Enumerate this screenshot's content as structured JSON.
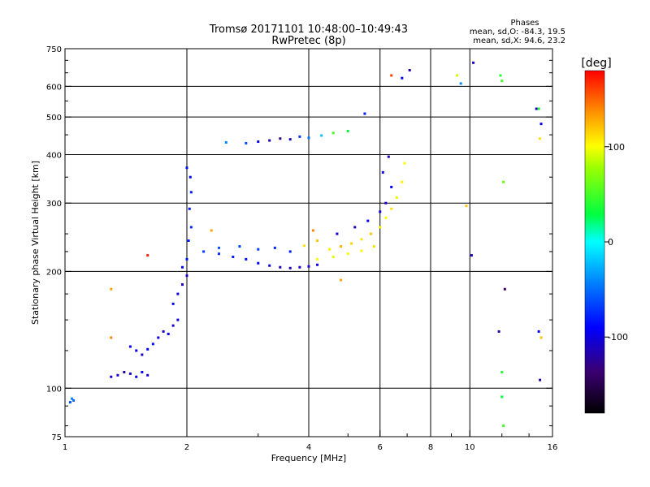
{
  "chart_data": {
    "type": "scatter",
    "title": "Tromsø 20171101 10:48:00–10:49:43",
    "subtitle": "RwPretec (8p)",
    "stats": {
      "heading": "Phases",
      "line_o": "mean, sd,O: -84.3, 19.5",
      "line_x": "mean, sd,X:  94.6, 23.2"
    },
    "xlabel": "Frequency [MHz]",
    "ylabel": "Stationary phase Virtual Height [km]",
    "x_scale": "log",
    "y_scale": "log",
    "xlim": [
      1,
      16
    ],
    "ylim": [
      75,
      750
    ],
    "x_ticks": [
      1,
      2,
      4,
      6,
      8,
      10,
      16
    ],
    "x_tick_labels": [
      "1",
      "2",
      "4",
      "6",
      "8",
      "10",
      "16"
    ],
    "y_ticks": [
      75,
      100,
      200,
      300,
      400,
      500,
      600,
      750
    ],
    "y_tick_labels": [
      "75",
      "100",
      "200",
      "300",
      "400",
      "500",
      "600",
      "750"
    ],
    "grid": true,
    "colorbar": {
      "label": "[deg]",
      "range": [
        -180,
        180
      ],
      "ticks": [
        100,
        0,
        -100
      ],
      "tick_labels": [
        "100",
        "0",
        "-100"
      ]
    },
    "series": [
      {
        "points": [
          [
            1.03,
            92,
            -60
          ],
          [
            1.05,
            93,
            -55
          ],
          [
            1.04,
            94,
            -40
          ],
          [
            1.3,
            107,
            -100
          ],
          [
            1.35,
            108,
            -110
          ],
          [
            1.4,
            110,
            -120
          ],
          [
            1.45,
            109,
            -110
          ],
          [
            1.5,
            107,
            -100
          ],
          [
            1.55,
            110,
            -95
          ],
          [
            1.6,
            108,
            -105
          ],
          [
            1.45,
            128,
            -90
          ],
          [
            1.5,
            125,
            -100
          ],
          [
            1.55,
            122,
            -110
          ],
          [
            1.6,
            126,
            -95
          ],
          [
            1.65,
            130,
            -85
          ],
          [
            1.7,
            135,
            -100
          ],
          [
            1.75,
            140,
            -110
          ],
          [
            1.8,
            138,
            -95
          ],
          [
            1.85,
            145,
            -105
          ],
          [
            1.9,
            150,
            -100
          ],
          [
            1.85,
            165,
            -95
          ],
          [
            1.9,
            175,
            -100
          ],
          [
            1.95,
            185,
            -110
          ],
          [
            2.0,
            195,
            -105
          ],
          [
            1.95,
            205,
            -90
          ],
          [
            2.0,
            215,
            -85
          ],
          [
            2.02,
            240,
            -80
          ],
          [
            2.05,
            260,
            -75
          ],
          [
            2.03,
            290,
            -85
          ],
          [
            2.05,
            320,
            -80
          ],
          [
            2.04,
            350,
            -90
          ],
          [
            2.0,
            370,
            -85
          ],
          [
            2.2,
            225,
            -70
          ],
          [
            2.4,
            222,
            -75
          ],
          [
            2.6,
            218,
            -80
          ],
          [
            2.8,
            215,
            -85
          ],
          [
            3.0,
            210,
            -90
          ],
          [
            3.2,
            207,
            -100
          ],
          [
            3.4,
            205,
            -110
          ],
          [
            3.6,
            204,
            -115
          ],
          [
            3.8,
            205,
            -110
          ],
          [
            4.0,
            206,
            -105
          ],
          [
            4.2,
            208,
            -100
          ],
          [
            2.4,
            230,
            -60
          ],
          [
            2.7,
            232,
            -65
          ],
          [
            3.0,
            228,
            -70
          ],
          [
            3.3,
            230,
            -75
          ],
          [
            3.6,
            225,
            -80
          ],
          [
            3.9,
            233,
            110
          ],
          [
            4.2,
            240,
            120
          ],
          [
            4.5,
            228,
            105
          ],
          [
            4.8,
            232,
            125
          ],
          [
            5.1,
            236,
            115
          ],
          [
            5.4,
            242,
            110
          ],
          [
            5.7,
            250,
            120
          ],
          [
            6.0,
            260,
            105
          ],
          [
            6.2,
            275,
            100
          ],
          [
            6.4,
            290,
            110
          ],
          [
            6.6,
            310,
            95
          ],
          [
            6.8,
            340,
            105
          ],
          [
            6.9,
            380,
            100
          ],
          [
            4.2,
            215,
            100
          ],
          [
            4.6,
            218,
            95
          ],
          [
            5.0,
            222,
            100
          ],
          [
            5.4,
            226,
            105
          ],
          [
            5.8,
            232,
            110
          ],
          [
            4.7,
            250,
            -100
          ],
          [
            5.2,
            260,
            -110
          ],
          [
            5.6,
            270,
            -95
          ],
          [
            6.0,
            285,
            -100
          ],
          [
            6.2,
            300,
            -105
          ],
          [
            6.4,
            330,
            -90
          ],
          [
            6.1,
            360,
            -100
          ],
          [
            6.3,
            395,
            -110
          ],
          [
            2.5,
            430,
            -40
          ],
          [
            2.8,
            428,
            -60
          ],
          [
            3.0,
            432,
            -100
          ],
          [
            3.2,
            435,
            -120
          ],
          [
            3.4,
            440,
            -130
          ],
          [
            3.6,
            438,
            -110
          ],
          [
            3.8,
            445,
            -70
          ],
          [
            4.0,
            442,
            -50
          ],
          [
            4.3,
            448,
            -20
          ],
          [
            4.6,
            455,
            50
          ],
          [
            5.0,
            460,
            30
          ],
          [
            1.3,
            180,
            130
          ],
          [
            1.3,
            135,
            140
          ],
          [
            1.6,
            220,
            170
          ],
          [
            2.3,
            255,
            130
          ],
          [
            4.1,
            255,
            140
          ],
          [
            4.8,
            190,
            130
          ],
          [
            5.5,
            510,
            -80
          ],
          [
            6.4,
            640,
            160
          ],
          [
            6.8,
            630,
            -90
          ],
          [
            7.1,
            660,
            -120
          ],
          [
            9.3,
            640,
            90
          ],
          [
            9.5,
            610,
            -40
          ],
          [
            10.2,
            690,
            -110
          ],
          [
            9.8,
            295,
            120
          ],
          [
            10.1,
            220,
            -110
          ],
          [
            11.9,
            640,
            40
          ],
          [
            12.0,
            620,
            50
          ],
          [
            12.1,
            340,
            60
          ],
          [
            12.2,
            180,
            -140
          ],
          [
            11.8,
            140,
            -120
          ],
          [
            12.0,
            110,
            40
          ],
          [
            12.0,
            95,
            30
          ],
          [
            12.1,
            80,
            50
          ],
          [
            14.6,
            525,
            -110
          ],
          [
            14.8,
            525,
            40
          ],
          [
            15.0,
            480,
            -90
          ],
          [
            14.9,
            440,
            110
          ],
          [
            14.8,
            140,
            -90
          ],
          [
            15.0,
            135,
            120
          ],
          [
            14.9,
            105,
            -120
          ]
        ]
      }
    ]
  }
}
